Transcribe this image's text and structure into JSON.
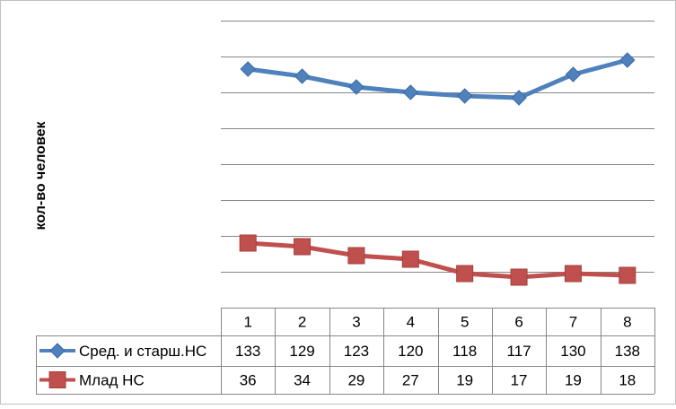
{
  "chart_data": {
    "type": "line",
    "ylabel": "кол-во человек",
    "categories": [
      "1",
      "2",
      "3",
      "4",
      "5",
      "6",
      "7",
      "8"
    ],
    "series": [
      {
        "name": "Сред. и старш.НС",
        "values": [
          133,
          129,
          123,
          120,
          118,
          117,
          130,
          138
        ],
        "color": "#4f81bd",
        "marker": "diamond"
      },
      {
        "name": "Млад НС",
        "values": [
          36,
          34,
          29,
          27,
          19,
          17,
          19,
          18
        ],
        "color": "#c0504d",
        "marker": "square"
      }
    ],
    "ylim": [
      0,
      160
    ],
    "y_gridline_step": 20,
    "grid": true,
    "legend": "data-table",
    "data_table": true
  }
}
